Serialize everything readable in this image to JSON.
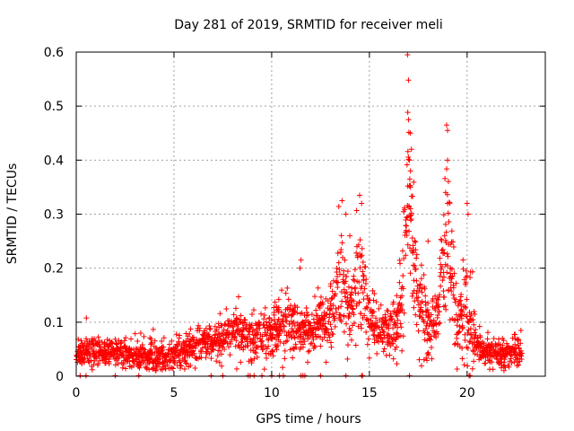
{
  "chart_data": {
    "type": "scatter",
    "title": "Day 281 of 2019, SRMTID for receiver meli",
    "xlabel": "GPS time / hours",
    "ylabel": "SRMTID / TECUs",
    "xlim": [
      0,
      24
    ],
    "ylim": [
      0,
      0.6
    ],
    "x_ticks": [
      0,
      5,
      10,
      15,
      20
    ],
    "y_ticks": [
      0,
      0.1,
      0.2,
      0.3,
      0.4,
      0.5,
      0.6
    ],
    "x_tick_labels": [
      "0",
      "5",
      "10",
      "15",
      "20"
    ],
    "y_tick_labels": [
      "0",
      "0.1",
      "0.2",
      "0.3",
      "0.4",
      "0.5",
      "0.6"
    ],
    "grid": true,
    "marker": "+",
    "series": [
      {
        "name": "SRMTID",
        "color": "#ff0000",
        "x_range": [
          0,
          22.8
        ],
        "profile": [
          [
            0.0,
            0.04,
            0.01
          ],
          [
            0.5,
            0.05,
            0.015
          ],
          [
            1.0,
            0.045,
            0.012
          ],
          [
            2.0,
            0.045,
            0.012
          ],
          [
            3.0,
            0.04,
            0.015
          ],
          [
            4.0,
            0.035,
            0.015
          ],
          [
            5.0,
            0.04,
            0.012
          ],
          [
            6.0,
            0.055,
            0.015
          ],
          [
            7.0,
            0.065,
            0.015
          ],
          [
            8.0,
            0.08,
            0.02
          ],
          [
            8.5,
            0.08,
            0.02
          ],
          [
            9.0,
            0.07,
            0.02
          ],
          [
            10.0,
            0.085,
            0.025
          ],
          [
            11.0,
            0.095,
            0.03
          ],
          [
            11.5,
            0.08,
            0.02
          ],
          [
            12.0,
            0.085,
            0.02
          ],
          [
            13.0,
            0.11,
            0.03
          ],
          [
            13.5,
            0.18,
            0.06
          ],
          [
            14.0,
            0.11,
            0.03
          ],
          [
            14.5,
            0.2,
            0.06
          ],
          [
            15.0,
            0.11,
            0.03
          ],
          [
            15.5,
            0.08,
            0.025
          ],
          [
            16.0,
            0.08,
            0.025
          ],
          [
            16.5,
            0.11,
            0.03
          ],
          [
            17.0,
            0.35,
            0.09
          ],
          [
            17.5,
            0.14,
            0.04
          ],
          [
            18.0,
            0.09,
            0.03
          ],
          [
            18.5,
            0.11,
            0.03
          ],
          [
            19.0,
            0.28,
            0.08
          ],
          [
            19.5,
            0.08,
            0.03
          ],
          [
            20.0,
            0.12,
            0.06
          ],
          [
            20.5,
            0.055,
            0.015
          ],
          [
            21.0,
            0.045,
            0.012
          ],
          [
            22.0,
            0.04,
            0.012
          ],
          [
            22.8,
            0.05,
            0.015
          ]
        ],
        "peaks": [
          [
            13.6,
            0.325
          ],
          [
            13.8,
            0.3
          ],
          [
            14.5,
            0.335
          ],
          [
            14.6,
            0.32
          ],
          [
            16.95,
            0.595
          ],
          [
            17.0,
            0.548
          ],
          [
            17.0,
            0.475
          ],
          [
            17.1,
            0.45
          ],
          [
            17.15,
            0.42
          ],
          [
            17.05,
            0.4
          ],
          [
            17.1,
            0.38
          ],
          [
            17.1,
            0.35
          ],
          [
            17.1,
            0.31
          ],
          [
            18.95,
            0.465
          ],
          [
            19.0,
            0.455
          ],
          [
            19.0,
            0.4
          ],
          [
            18.9,
            0.34
          ],
          [
            19.0,
            0.32
          ],
          [
            20.0,
            0.32
          ],
          [
            20.05,
            0.3
          ],
          [
            11.5,
            0.215
          ],
          [
            11.45,
            0.2
          ],
          [
            14.0,
            0.26
          ],
          [
            18.0,
            0.25
          ]
        ],
        "zero_points": [
          0.2,
          0.5,
          2.0,
          3.2,
          6.9,
          7.5,
          8.8,
          8.9,
          9.1,
          9.5,
          10.0,
          10.4,
          10.6,
          11.5,
          11.6,
          11.7,
          12.5,
          13.8,
          14.6,
          14.65,
          17.05,
          20.1,
          20.15
        ]
      }
    ]
  }
}
